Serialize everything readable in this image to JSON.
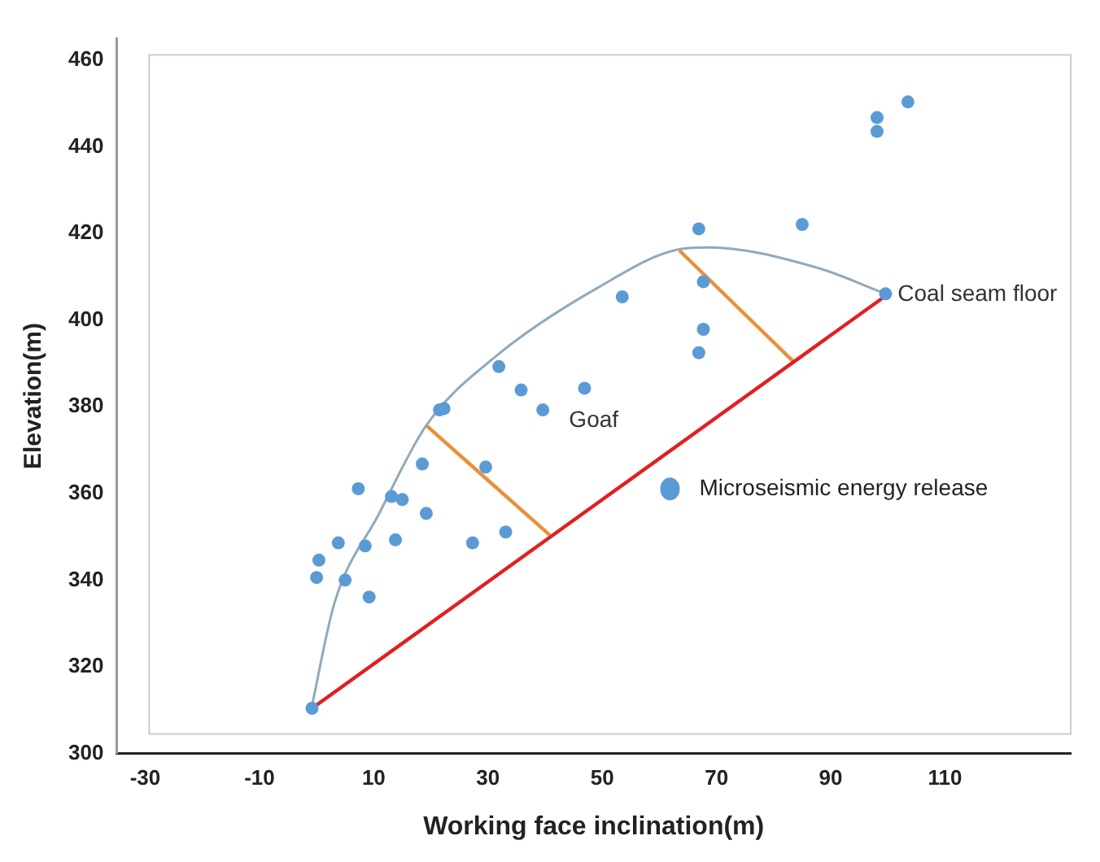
{
  "chart_data": {
    "type": "scatter",
    "xlabel": "Working face inclination(m)",
    "ylabel": "Elevation(m)",
    "xlim": [
      -35,
      132
    ],
    "xticks": [
      -30,
      -10,
      10,
      30,
      50,
      70,
      90,
      110
    ],
    "ylim": [
      300,
      465
    ],
    "yticks": [
      300,
      320,
      340,
      360,
      380,
      400,
      420,
      440,
      460
    ],
    "grid": false,
    "legend": "right",
    "marker": "circle",
    "series": [
      {
        "name": "Microseismic energy release",
        "color": "#5b9bd5",
        "x": [
          66.9,
          67.7,
          53.5,
          67.7,
          66.9,
          31.9,
          35.8,
          46.9,
          22.3,
          21.5,
          39.6,
          18.5,
          29.6,
          7.3,
          13.1,
          15,
          19.2,
          3.8,
          8.5,
          13.8,
          27.3,
          33.1,
          0.4,
          0,
          5,
          9.2,
          -0.8,
          103.5,
          98.1,
          98.1,
          85,
          99.6
        ],
        "values": [
          421.1,
          408.9,
          405.4,
          397.9,
          392.5,
          389.3,
          383.9,
          384.3,
          379.6,
          379.3,
          379.3,
          366.8,
          366.1,
          361.1,
          359.3,
          358.6,
          355.4,
          348.6,
          347.9,
          349.3,
          348.6,
          351.1,
          344.6,
          340.6,
          340,
          336.1,
          310.4,
          450.4,
          446.8,
          443.6,
          422.1,
          406.1
        ]
      },
      {
        "type": "line",
        "marker": "none",
        "color": "#e02020",
        "x": [
          -0.8,
          100.4
        ],
        "values": [
          310.4,
          406.4
        ]
      },
      {
        "type": "line",
        "marker": "none",
        "color": "#8faabc",
        "x": [
          -0.8,
          3.1,
          10.8,
          19.2,
          31.5,
          49.2,
          63.5,
          68.5,
          87.7,
          99.6
        ],
        "values": [
          311.1,
          334.6,
          355,
          375.7,
          391.8,
          407.5,
          416.4,
          416.8,
          412.1,
          406.1
        ]
      },
      {
        "type": "line",
        "marker": "none",
        "color": "#e8913a",
        "x": [
          19.2,
          40.8
        ],
        "values": [
          375.7,
          350.4
        ]
      },
      {
        "type": "line",
        "marker": "none",
        "color": "#e8913a",
        "x": [
          63.5,
          83.5
        ],
        "values": [
          416.1,
          390.4
        ]
      }
    ],
    "annotations": [
      "Goaf",
      {
        "text": "Coal seam floor",
        "x": 100,
        "y": 406
      }
    ]
  }
}
